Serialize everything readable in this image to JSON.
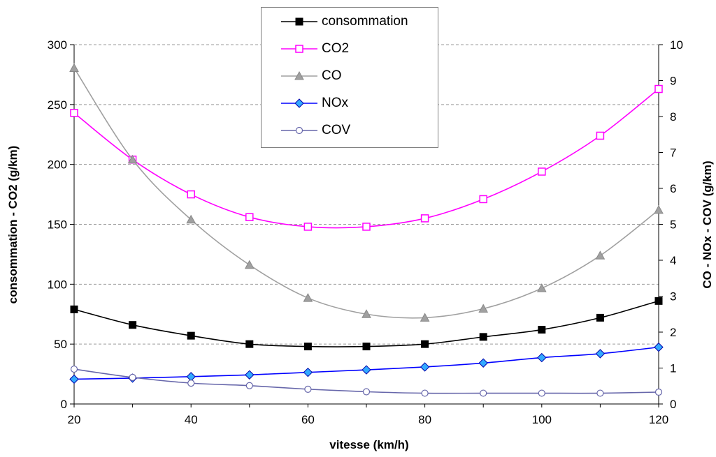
{
  "chart_data": {
    "type": "line",
    "xlabel": "vitesse (km/h)",
    "ylabel_left": "consommation - CO2 (g/km)",
    "ylabel_right": "CO - NOx - COV (g/km)",
    "xlim": [
      20,
      120
    ],
    "ylim_left": [
      0,
      300
    ],
    "ylim_right": [
      0,
      10
    ],
    "x_ticks": [
      20,
      40,
      60,
      80,
      100,
      120
    ],
    "y_left_ticks": [
      0,
      50,
      100,
      150,
      200,
      250,
      300
    ],
    "y_right_ticks": [
      0,
      1,
      2,
      3,
      4,
      5,
      6,
      7,
      8,
      9,
      10
    ],
    "grid": "horizontal dashed",
    "legend_position": "top-center",
    "x": [
      20,
      30,
      40,
      50,
      60,
      70,
      80,
      90,
      100,
      110,
      120
    ],
    "series": [
      {
        "name": "consommation",
        "axis": "left",
        "color": "#000000",
        "marker": "square-filled",
        "values": [
          79,
          66,
          57,
          50,
          48,
          48,
          50,
          56,
          62,
          72,
          86
        ]
      },
      {
        "name": "CO2",
        "axis": "left",
        "color": "#ff00ff",
        "marker": "square-open",
        "values": [
          243,
          204,
          175,
          156,
          148,
          148,
          155,
          171,
          194,
          224,
          263
        ]
      },
      {
        "name": "CO",
        "axis": "right",
        "color": "#a0a0a0",
        "marker": "triangle",
        "values": [
          9.35,
          6.8,
          5.13,
          3.87,
          2.95,
          2.5,
          2.4,
          2.65,
          3.22,
          4.13,
          5.4
        ]
      },
      {
        "name": "NOx",
        "axis": "right",
        "color": "#0000ff",
        "marker": "diamond",
        "values": [
          0.69,
          0.72,
          0.76,
          0.81,
          0.88,
          0.95,
          1.03,
          1.14,
          1.29,
          1.4,
          1.58
        ]
      },
      {
        "name": "COV",
        "axis": "right",
        "color": "#6666aa",
        "marker": "circle-open",
        "values": [
          0.97,
          0.74,
          0.58,
          0.51,
          0.41,
          0.34,
          0.3,
          0.3,
          0.3,
          0.3,
          0.33
        ]
      }
    ]
  }
}
